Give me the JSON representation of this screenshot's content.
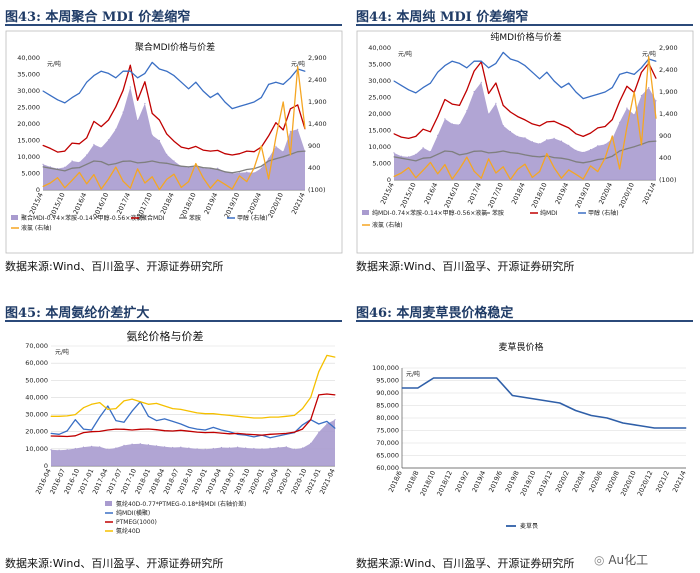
{
  "panels": [
    {
      "label": "图43:  本周聚合 MDI 价差缩窄",
      "source": "数据来源:Wind、百川盈孚、开源证券研究所",
      "chart_data": {
        "type": "area+line",
        "title": "聚合MDI价格与价差",
        "unit_left": "元/吨",
        "unit_right": "元/吨",
        "y_ticks": [
          "40,000",
          "35,000",
          "30,000",
          "25,000",
          "20,000",
          "15,000",
          "10,000",
          "5,000",
          "0"
        ],
        "y2_ticks": [
          "2,900",
          "2,400",
          "1,900",
          "1,400",
          "900",
          "400",
          "(100)"
        ],
        "ylim": [
          0,
          40000
        ],
        "y2lim": [
          -100,
          2900
        ],
        "x_ticks": [
          "2015/4",
          "2015/10",
          "2016/4",
          "2016/10",
          "2017/4",
          "2017/10",
          "2018/4",
          "2018/10",
          "2019/4",
          "2019/10",
          "2020/4",
          "2020/10",
          "2021/4"
        ],
        "legend": [
          "聚合MDI-0.74×苯胺-0.14×甲醇-0.56×液氯",
          "聚合MDI",
          "苯胺",
          "甲醇 (右轴)",
          "液氯 (右轴)"
        ],
        "series": [
          {
            "name": "聚合MDI-0.74×苯胺-0.14×甲醇-0.56×液氯",
            "color": "#a99bcf",
            "values": [
              7800,
              7000,
              6500,
              6900,
              8800,
              8400,
              10600,
              13800,
              12800,
              15200,
              18400,
              23600,
              31200,
              21000,
              26200,
              16600,
              15000,
              10800,
              8800,
              7200,
              6800,
              7400,
              6600,
              6400,
              6600,
              5600,
              5000,
              5200,
              5400,
              5200,
              6600,
              9600,
              13200,
              11600,
              17800,
              18400,
              11800
            ]
          },
          {
            "name": "聚合MDI",
            "color": "#c00000",
            "values": [
              13500,
              12600,
              11500,
              11800,
              14200,
              14000,
              15800,
              20800,
              19200,
              21200,
              25200,
              30200,
              37800,
              27200,
              32800,
              23200,
              21200,
              17000,
              14800,
              13000,
              12500,
              13200,
              12100,
              11800,
              12000,
              11000,
              10600,
              11000,
              11800,
              11600,
              13000,
              16400,
              20400,
              18200,
              24600,
              25800,
              18500
            ]
          },
          {
            "name": "苯胺",
            "color": "#7f7f7f",
            "values": [
              7000,
              6600,
              6200,
              5800,
              6600,
              6800,
              7800,
              8800,
              8600,
              7600,
              8000,
              8700,
              8800,
              8200,
              8400,
              8800,
              8300,
              8100,
              7600,
              7200,
              7000,
              7300,
              6800,
              6600,
              6200,
              5500,
              5200,
              5600,
              6200,
              6500,
              7200,
              8800,
              9500,
              10100,
              10800,
              11600,
              11800
            ]
          },
          {
            "name": "甲醇 (右轴)",
            "color": "#3a6fc4",
            "values": [
              2150,
              2050,
              1950,
              1880,
              2000,
              2100,
              2350,
              2500,
              2600,
              2550,
              2450,
              2600,
              2600,
              2450,
              2550,
              2800,
              2650,
              2600,
              2500,
              2350,
              2200,
              2350,
              2150,
              2000,
              2100,
              1900,
              1750,
              1800,
              1850,
              1900,
              2000,
              2300,
              2350,
              2300,
              2450,
              2650,
              2600
            ]
          },
          {
            "name": "液氯 (右轴)",
            "color": "#f5a623",
            "values": [
              -20,
              60,
              180,
              -50,
              120,
              300,
              40,
              250,
              -80,
              150,
              420,
              100,
              -60,
              380,
              60,
              200,
              -90,
              140,
              260,
              -40,
              90,
              500,
              180,
              -60,
              130,
              30,
              -80,
              220,
              90,
              400,
              900,
              150,
              1100,
              1900,
              700,
              2700,
              1300
            ]
          }
        ]
      }
    },
    {
      "label": "图44:  本周纯 MDI 价差缩窄",
      "source": "数据来源:Wind、百川盈孚、开源证券研究所",
      "chart_data": {
        "type": "area+line",
        "title": "纯MDI价格与价差",
        "unit_left": "元/吨",
        "unit_right": "元/吨",
        "y_ticks": [
          "40,000",
          "35,000",
          "30,000",
          "25,000",
          "20,000",
          "15,000",
          "10,000",
          "5,000",
          "0"
        ],
        "y2_ticks": [
          "2,900",
          "2,400",
          "1,900",
          "1,400",
          "900",
          "400",
          "(100)"
        ],
        "ylim": [
          0,
          40000
        ],
        "y2lim": [
          -100,
          2900
        ],
        "x_ticks": [
          "2015/4",
          "2015/10",
          "2016/4",
          "2016/10",
          "2017/4",
          "2017/10",
          "2018/4",
          "2018/10",
          "2019/4",
          "2019/10",
          "2020/4",
          "2020/10",
          "2021/4"
        ],
        "legend": [
          "纯MDI-0.74×苯胺-0.14×甲醇-0.56×液氯",
          "苯胺",
          "纯MDI",
          "甲醇 (右轴)",
          "液氯 (右轴)"
        ],
        "series": [
          {
            "name": "纯MDI-0.74×苯胺-0.14×甲醇-0.56×液氯",
            "color": "#a99bcf",
            "values": [
              8200,
              7200,
              7000,
              7800,
              9800,
              8600,
              13500,
              18500,
              17000,
              16800,
              21000,
              26800,
              29600,
              20000,
              23200,
              16500,
              14700,
              13200,
              12800,
              11600,
              11000,
              12200,
              12600,
              11800,
              10500,
              9000,
              8400,
              9200,
              10400,
              10800,
              12500,
              17500,
              21800,
              19800,
              25600,
              28000,
              24000
            ]
          },
          {
            "name": "苯胺",
            "color": "#7f7f7f",
            "values": [
              7000,
              6600,
              6200,
              5800,
              6600,
              6800,
              7800,
              8800,
              8600,
              7600,
              8000,
              8700,
              8800,
              8200,
              8400,
              8800,
              8300,
              8100,
              7600,
              7200,
              7000,
              7300,
              6800,
              6600,
              6200,
              5500,
              5200,
              5600,
              6200,
              6500,
              7200,
              8800,
              9500,
              10100,
              10800,
              11600,
              11800
            ]
          },
          {
            "name": "纯MDI",
            "color": "#c00000",
            "values": [
              14000,
              13000,
              12600,
              13200,
              15400,
              14600,
              19200,
              24400,
              23000,
              22600,
              27200,
              33000,
              35800,
              26200,
              29400,
              22600,
              20600,
              19200,
              18200,
              17000,
              16400,
              17600,
              17800,
              16800,
              15800,
              14000,
              13200,
              14200,
              15800,
              16200,
              18300,
              23800,
              28400,
              26500,
              32600,
              35400,
              30800
            ]
          },
          {
            "name": "甲醇 (右轴)",
            "color": "#3a6fc4",
            "values": [
              2150,
              2050,
              1950,
              1880,
              2000,
              2100,
              2350,
              2500,
              2600,
              2550,
              2450,
              2600,
              2600,
              2450,
              2550,
              2800,
              2650,
              2600,
              2500,
              2350,
              2200,
              2350,
              2150,
              2000,
              2100,
              1900,
              1750,
              1800,
              1850,
              1900,
              2000,
              2300,
              2350,
              2300,
              2450,
              2650,
              2600
            ]
          },
          {
            "name": "液氯 (右轴)",
            "color": "#f5a623",
            "values": [
              -20,
              60,
              180,
              -50,
              120,
              300,
              40,
              250,
              -80,
              150,
              420,
              100,
              -60,
              380,
              60,
              200,
              -90,
              140,
              260,
              -40,
              90,
              500,
              180,
              -60,
              130,
              30,
              -80,
              220,
              90,
              400,
              900,
              150,
              1100,
              1900,
              700,
              2700,
              1300
            ]
          }
        ]
      }
    },
    {
      "label": "图45:  本周氨纶价差扩大",
      "source": "数据来源:Wind、百川盈孚、开源证券研究所",
      "chart_data": {
        "type": "area+line",
        "title": "氨纶价格与价差",
        "unit_left": "元/吨",
        "y_ticks": [
          "70,000",
          "60,000",
          "50,000",
          "40,000",
          "30,000",
          "20,000",
          "10,000",
          "0"
        ],
        "ylim": [
          0,
          70000
        ],
        "x_ticks": [
          "2016-04",
          "2016-07",
          "2016-10",
          "2017-01",
          "2017-04",
          "2017-07",
          "2017-10",
          "2018-01",
          "2018-04",
          "2018-07",
          "2018-10",
          "2019-01",
          "2019-04",
          "2019-07",
          "2019-10",
          "2020-01",
          "2020-04",
          "2020-07",
          "2020-10",
          "2021-01",
          "2021-04"
        ],
        "legend": [
          "氨纶40D-0.77*PTMEG-0.18*纯MDI (右轴价差)",
          "纯MDI(横聚)",
          "PTMEG(1000)",
          "氨纶40D"
        ],
        "series": [
          {
            "name": "氨纶40D-0.77*PTMEG-0.18*纯MDI (右轴价差)",
            "color": "#a99bcf",
            "values": [
              9500,
              9200,
              9500,
              10200,
              11000,
              11500,
              11200,
              9800,
              10500,
              12000,
              12800,
              13000,
              12400,
              11800,
              11200,
              10800,
              11000,
              10500,
              10000,
              9800,
              10200,
              10800,
              10600,
              11000,
              10500,
              10200,
              10000,
              10400,
              10800,
              11200,
              9800,
              10500,
              13200,
              19800,
              24600,
              27000
            ]
          },
          {
            "name": "纯MDI(横聚)",
            "color": "#3a6fc4",
            "values": [
              19000,
              18500,
              20500,
              27000,
              21500,
              21000,
              28500,
              35000,
              26500,
              25500,
              32000,
              37500,
              29000,
              26500,
              27500,
              26000,
              24500,
              22500,
              21500,
              21000,
              22500,
              21000,
              20000,
              18500,
              18000,
              17000,
              18000,
              16500,
              17500,
              18500,
              19500,
              24000,
              27000,
              24500,
              26000,
              22000
            ]
          },
          {
            "name": "PTMEG(1000)",
            "color": "#c00000",
            "values": [
              17500,
              17400,
              17200,
              17600,
              19500,
              20000,
              20200,
              21000,
              21500,
              21400,
              21000,
              21400,
              21600,
              21200,
              20600,
              20400,
              20800,
              20300,
              19800,
              19500,
              19600,
              19200,
              18800,
              19000,
              18600,
              18300,
              18000,
              18500,
              18700,
              19000,
              19800,
              21500,
              27000,
              41500,
              42000,
              41500
            ]
          },
          {
            "name": "氨纶40D",
            "color": "#f5c000",
            "values": [
              29000,
              29000,
              29200,
              30000,
              34000,
              36000,
              37000,
              33000,
              33500,
              38000,
              39000,
              37500,
              36000,
              36500,
              35000,
              33500,
              33000,
              32000,
              31000,
              30500,
              30500,
              30000,
              29500,
              29000,
              28500,
              28000,
              28000,
              28500,
              28500,
              29000,
              29500,
              33500,
              40000,
              55000,
              64500,
              63500
            ]
          }
        ]
      }
    },
    {
      "label": "图46:  本周麦草畏价格稳定",
      "source": "数据来源:Wind、百川盈孚、开源证券研究所",
      "chart_data": {
        "type": "line",
        "title": "麦草畏价格",
        "unit_left": "元/吨",
        "y_ticks": [
          "100,000",
          "95,000",
          "90,000",
          "85,000",
          "80,000",
          "75,000",
          "70,000",
          "65,000",
          "60,000"
        ],
        "ylim": [
          60000,
          100000
        ],
        "x_ticks": [
          "2018/6",
          "2018/8",
          "2018/10",
          "2018/12",
          "2019/2",
          "2019/4",
          "2019/6",
          "2019/8",
          "2019/10",
          "2019/12",
          "2020/2",
          "2020/4",
          "2020/6",
          "2020/8",
          "2020/10",
          "2020/12",
          "2021/2",
          "2021/4"
        ],
        "legend": [
          "麦草畏"
        ],
        "series": [
          {
            "name": "麦草畏",
            "color": "#2f5fa8",
            "values": [
              92000,
              92000,
              96000,
              96000,
              96000,
              96000,
              96000,
              89000,
              88000,
              87000,
              86000,
              83000,
              81000,
              80000,
              78000,
              77000,
              76000,
              76000,
              76000
            ]
          }
        ]
      }
    }
  ],
  "watermark": "Au化工"
}
